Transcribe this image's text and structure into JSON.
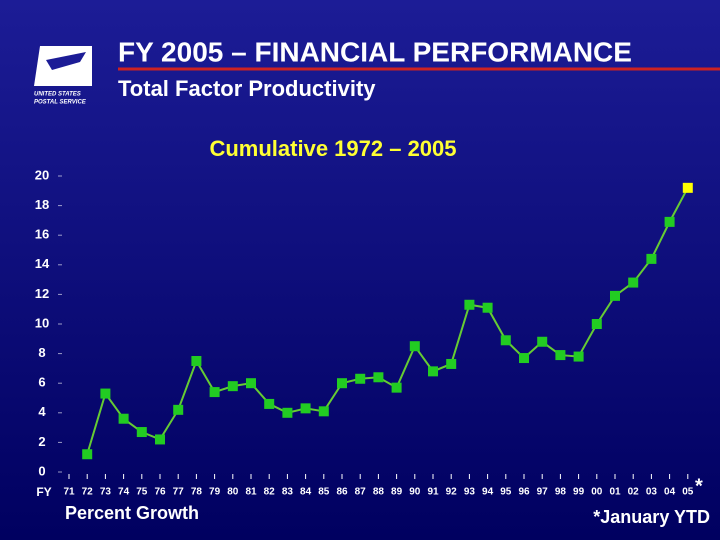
{
  "header": {
    "title": "FY 2005 – FINANCIAL PERFORMANCE",
    "subtitle": "Total Factor Productivity",
    "logo_line1": "UNITED STATES",
    "logo_line2": "POSTAL SERVICE"
  },
  "chart_data": {
    "type": "line",
    "title": "Cumulative 1972 – 2005",
    "x_axis_label": "FY",
    "y_axis_label": "Percent Growth",
    "footnote_marker": "*",
    "footnote": "*January YTD",
    "categories": [
      "71",
      "72",
      "73",
      "74",
      "75",
      "76",
      "77",
      "78",
      "79",
      "80",
      "81",
      "82",
      "83",
      "84",
      "85",
      "86",
      "87",
      "88",
      "89",
      "90",
      "91",
      "92",
      "93",
      "94",
      "95",
      "96",
      "97",
      "98",
      "99",
      "00",
      "01",
      "02",
      "03",
      "04",
      "05"
    ],
    "series": [
      {
        "name": "Total Factor Productivity",
        "color": "#66cc33",
        "marker_color": "#22cc22",
        "values": [
          null,
          1.2,
          5.3,
          3.6,
          2.7,
          2.2,
          4.2,
          7.5,
          5.4,
          5.8,
          6.0,
          4.6,
          4.0,
          4.3,
          4.1,
          6.0,
          6.3,
          6.4,
          5.7,
          8.5,
          6.8,
          7.3,
          11.3,
          11.1,
          8.9,
          7.7,
          8.8,
          7.9,
          7.8,
          10.0,
          11.9,
          12.8,
          14.4,
          16.9,
          19.2
        ]
      }
    ],
    "last_point_color": "#ffff00",
    "ylim": [
      0,
      20
    ],
    "yticks": [
      0,
      2,
      4,
      6,
      8,
      10,
      12,
      14,
      16,
      18,
      20
    ]
  }
}
